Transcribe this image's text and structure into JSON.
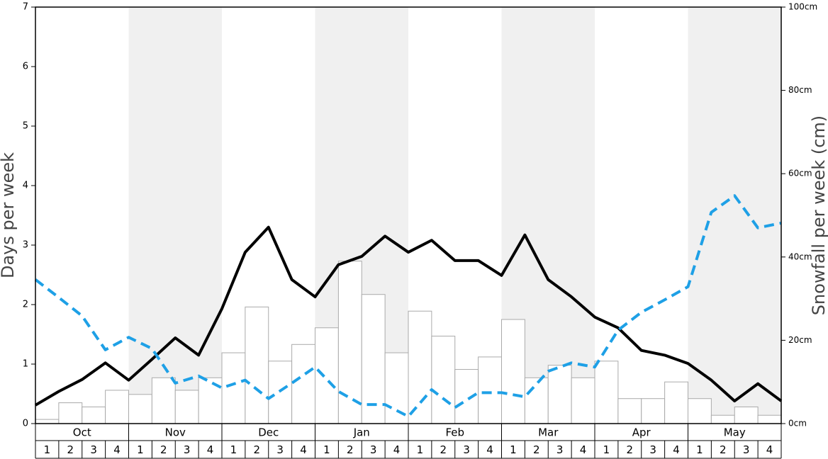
{
  "chart_data": {
    "type": "bar",
    "months": [
      "Oct",
      "Nov",
      "Dec",
      "Jan",
      "Feb",
      "Mar",
      "Apr",
      "May"
    ],
    "weeks": [
      "1",
      "2",
      "3",
      "4"
    ],
    "shade_color": "#f0f0f0",
    "ylabel": "Days per week",
    "y2label": "Snowfall per week (cm)",
    "ylim": [
      0,
      7
    ],
    "yticks": [
      0,
      1,
      2,
      3,
      4,
      5,
      6,
      7
    ],
    "y2lim": [
      0,
      100
    ],
    "y2ticks": [
      {
        "value": 0,
        "label": "0cm"
      },
      {
        "value": 20,
        "label": "20cm"
      },
      {
        "value": 40,
        "label": "40cm"
      },
      {
        "value": 60,
        "label": "60cm"
      },
      {
        "value": 80,
        "label": "80cm"
      },
      {
        "value": 100,
        "label": "100cm"
      }
    ],
    "series": [
      {
        "type": "bar",
        "axis": "y2",
        "color": "#ffffff",
        "values": [
          1,
          5,
          4,
          8,
          7,
          11,
          8,
          11,
          17,
          28,
          15,
          19,
          23,
          39,
          31,
          17,
          27,
          21,
          13,
          16,
          25,
          11,
          14,
          11,
          15,
          6,
          6,
          10,
          6,
          2,
          4,
          2
        ]
      },
      {
        "type": "line",
        "color": "#000000",
        "values": [
          0.31,
          0.54,
          0.74,
          1.02,
          0.73,
          1.08,
          1.44,
          1.15,
          1.93,
          2.88,
          3.3,
          2.42,
          2.13,
          2.67,
          2.81,
          3.15,
          2.88,
          3.08,
          2.74,
          2.74,
          2.49,
          3.17,
          2.42,
          2.13,
          1.79,
          1.61,
          1.23,
          1.15,
          1.01,
          0.73,
          0.38,
          0.67,
          0.38
        ]
      },
      {
        "type": "line",
        "color": "#1ea0e6",
        "dashed": true,
        "values": [
          2.42,
          2.12,
          1.81,
          1.24,
          1.45,
          1.26,
          0.68,
          0.8,
          0.6,
          0.73,
          0.42,
          0.68,
          0.95,
          0.54,
          0.32,
          0.32,
          0.12,
          0.57,
          0.27,
          0.52,
          0.52,
          0.45,
          0.88,
          1.02,
          0.95,
          1.57,
          1.87,
          2.08,
          2.3,
          3.55,
          3.83,
          3.29,
          3.37
        ]
      }
    ]
  }
}
